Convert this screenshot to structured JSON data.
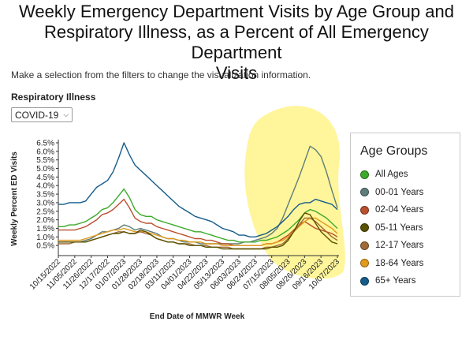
{
  "header": {
    "title_lines": [
      "Weekly Emergency Department Visits by Age Group and",
      "Respiratory Illness, as a Percent of All Emergency Department",
      "Visits"
    ],
    "instructions": "Make a selection from the filters to change the visualization information."
  },
  "filter": {
    "label": "Respiratory Illness",
    "selected": "COVID-19"
  },
  "legend": {
    "title": "Age Groups",
    "items": [
      {
        "label": "All Ages",
        "color": "#3caa2a"
      },
      {
        "label": "00-01 Years",
        "color": "#5f7d7a"
      },
      {
        "label": "02-04 Years",
        "color": "#b9502e"
      },
      {
        "label": "05-11 Years",
        "color": "#5a5200"
      },
      {
        "label": "12-17 Years",
        "color": "#a06a38"
      },
      {
        "label": "18-64 Years",
        "color": "#e09a1c"
      },
      {
        "label": "65+ Years",
        "color": "#155c8a"
      }
    ]
  },
  "highlight_color": "#fff38a",
  "chart_data": {
    "type": "line",
    "title": "Weekly Emergency Department Visits by Age Group and Respiratory Illness, as a Percent of All Emergency Department Visits",
    "xlabel": "End Date of MMWR Week",
    "ylabel": "Weekly Percent ED Visits",
    "ylim": [
      0,
      6.5
    ],
    "yticks": [
      "0.5%",
      "1.0%",
      "1.5%",
      "2.0%",
      "2.5%",
      "3.0%",
      "3.5%",
      "4.0%",
      "4.5%",
      "5.0%",
      "5.5%",
      "6.0%",
      "6.5%"
    ],
    "ytick_values": [
      0.5,
      1.0,
      1.5,
      2.0,
      2.5,
      3.0,
      3.5,
      4.0,
      4.5,
      5.0,
      5.5,
      6.0,
      6.5
    ],
    "x": [
      "10/15/2022",
      "10/22/2022",
      "10/29/2022",
      "11/05/2022",
      "11/12/2022",
      "11/19/2022",
      "11/26/2022",
      "12/03/2022",
      "12/10/2022",
      "12/17/2022",
      "12/24/2022",
      "12/31/2022",
      "01/07/2023",
      "01/14/2023",
      "01/21/2023",
      "01/28/2023",
      "02/04/2023",
      "02/11/2023",
      "02/18/2023",
      "02/25/2023",
      "03/04/2023",
      "03/11/2023",
      "03/18/2023",
      "03/25/2023",
      "04/01/2023",
      "04/08/2023",
      "04/15/2023",
      "04/22/2023",
      "04/29/2023",
      "05/06/2023",
      "05/13/2023",
      "05/20/2023",
      "05/27/2023",
      "06/03/2023",
      "06/10/2023",
      "06/17/2023",
      "06/24/2023",
      "07/01/2023",
      "07/08/2023",
      "07/15/2023",
      "07/22/2023",
      "07/29/2023",
      "08/05/2023",
      "08/12/2023",
      "08/19/2023",
      "08/26/2023",
      "09/02/2023",
      "09/09/2023",
      "09/16/2023",
      "09/23/2023",
      "09/30/2023",
      "10/07/2023"
    ],
    "xtick_labels": [
      "10/15/2022",
      "11/05/2022",
      "11/26/2022",
      "12/17/2022",
      "01/07/2023",
      "01/28/2023",
      "02/18/2023",
      "03/11/2023",
      "04/01/2023",
      "04/22/2023",
      "05/13/2023",
      "06/03/2023",
      "06/24/2023",
      "07/15/2023",
      "08/05/2023",
      "08/26/2023",
      "09/16/2023",
      "10/07/2023"
    ],
    "legend_position": "right",
    "grid": false,
    "series": [
      {
        "name": "All Ages",
        "color": "#3caa2a",
        "values": [
          1.6,
          1.6,
          1.7,
          1.7,
          1.8,
          1.9,
          2.1,
          2.3,
          2.6,
          2.7,
          3.0,
          3.4,
          3.8,
          3.3,
          2.6,
          2.3,
          2.2,
          2.2,
          2.0,
          1.9,
          1.8,
          1.7,
          1.6,
          1.5,
          1.4,
          1.3,
          1.3,
          1.2,
          1.1,
          1.0,
          0.9,
          0.8,
          0.8,
          0.7,
          0.7,
          0.7,
          0.7,
          0.8,
          0.8,
          0.9,
          1.0,
          1.2,
          1.4,
          1.7,
          2.0,
          2.4,
          2.6,
          2.5,
          2.3,
          2.1,
          1.8,
          1.5
        ]
      },
      {
        "name": "00-01 Years",
        "color": "#5f7d7a",
        "values": [
          0.7,
          0.7,
          0.7,
          0.7,
          0.7,
          0.8,
          0.9,
          1.1,
          1.3,
          1.3,
          1.4,
          1.5,
          1.7,
          1.6,
          1.4,
          1.5,
          1.4,
          1.3,
          1.2,
          1.0,
          0.9,
          0.9,
          0.8,
          0.7,
          0.7,
          0.7,
          0.6,
          0.6,
          0.6,
          0.6,
          0.6,
          0.6,
          0.6,
          0.6,
          0.7,
          0.7,
          0.8,
          0.9,
          1.0,
          1.2,
          1.5,
          2.1,
          2.9,
          3.7,
          4.5,
          5.4,
          6.3,
          6.1,
          5.7,
          4.8,
          3.7,
          2.7
        ]
      },
      {
        "name": "02-04 Years",
        "color": "#b9502e",
        "values": [
          1.4,
          1.4,
          1.4,
          1.4,
          1.5,
          1.6,
          1.8,
          2.0,
          2.3,
          2.4,
          2.6,
          2.9,
          3.2,
          2.7,
          2.1,
          1.9,
          1.8,
          1.8,
          1.6,
          1.5,
          1.4,
          1.3,
          1.2,
          1.1,
          1.0,
          0.9,
          0.9,
          0.8,
          0.8,
          0.7,
          0.6,
          0.6,
          0.5,
          0.5,
          0.5,
          0.5,
          0.5,
          0.5,
          0.6,
          0.6,
          0.7,
          0.9,
          1.1,
          1.4,
          1.7,
          1.9,
          1.7,
          1.5,
          1.4,
          1.3,
          1.2,
          1.0
        ]
      },
      {
        "name": "05-11 Years",
        "color": "#5a5200",
        "values": [
          0.7,
          0.7,
          0.7,
          0.7,
          0.7,
          0.7,
          0.8,
          0.9,
          1.0,
          1.1,
          1.2,
          1.2,
          1.3,
          1.2,
          1.2,
          1.4,
          1.3,
          1.1,
          0.9,
          0.8,
          0.7,
          0.7,
          0.6,
          0.6,
          0.5,
          0.5,
          0.5,
          0.4,
          0.4,
          0.4,
          0.3,
          0.3,
          0.3,
          0.3,
          0.3,
          0.3,
          0.3,
          0.3,
          0.3,
          0.4,
          0.4,
          0.5,
          0.8,
          1.3,
          1.9,
          2.4,
          2.3,
          1.8,
          1.3,
          1.0,
          0.7,
          0.6
        ]
      },
      {
        "name": "12-17 Years",
        "color": "#a06a38",
        "values": [
          0.6,
          0.6,
          0.6,
          0.7,
          0.7,
          0.7,
          0.8,
          0.9,
          1.0,
          1.1,
          1.2,
          1.3,
          1.3,
          1.2,
          1.2,
          1.3,
          1.2,
          1.1,
          0.9,
          0.8,
          0.7,
          0.7,
          0.6,
          0.6,
          0.6,
          0.5,
          0.5,
          0.5,
          0.4,
          0.4,
          0.4,
          0.4,
          0.3,
          0.3,
          0.3,
          0.3,
          0.3,
          0.3,
          0.4,
          0.4,
          0.5,
          0.6,
          0.9,
          1.3,
          1.7,
          2.1,
          2.1,
          1.9,
          1.6,
          1.3,
          1.0,
          0.8
        ]
      },
      {
        "name": "18-64 Years",
        "color": "#e09a1c",
        "values": [
          0.8,
          0.8,
          0.8,
          0.8,
          0.8,
          0.9,
          1.0,
          1.1,
          1.2,
          1.3,
          1.4,
          1.4,
          1.5,
          1.4,
          1.3,
          1.3,
          1.3,
          1.2,
          1.1,
          1.0,
          0.9,
          0.9,
          0.8,
          0.8,
          0.7,
          0.7,
          0.7,
          0.6,
          0.6,
          0.6,
          0.5,
          0.5,
          0.5,
          0.5,
          0.5,
          0.5,
          0.5,
          0.5,
          0.6,
          0.6,
          0.7,
          0.8,
          1.0,
          1.3,
          1.6,
          1.9,
          2.1,
          2.1,
          1.9,
          1.7,
          1.5,
          1.2
        ]
      },
      {
        "name": "65+ Years",
        "color": "#155c8a",
        "values": [
          2.9,
          2.9,
          3.0,
          3.0,
          3.0,
          3.1,
          3.5,
          3.9,
          4.1,
          4.3,
          4.8,
          5.6,
          6.5,
          5.8,
          5.2,
          4.9,
          4.6,
          4.3,
          4.0,
          3.7,
          3.4,
          3.1,
          2.8,
          2.6,
          2.4,
          2.2,
          2.1,
          2.0,
          1.9,
          1.7,
          1.5,
          1.4,
          1.3,
          1.1,
          1.1,
          1.0,
          1.0,
          1.1,
          1.2,
          1.4,
          1.6,
          1.9,
          2.2,
          2.6,
          2.9,
          3.0,
          3.0,
          3.2,
          3.1,
          3.0,
          2.9,
          2.6
        ]
      }
    ]
  }
}
